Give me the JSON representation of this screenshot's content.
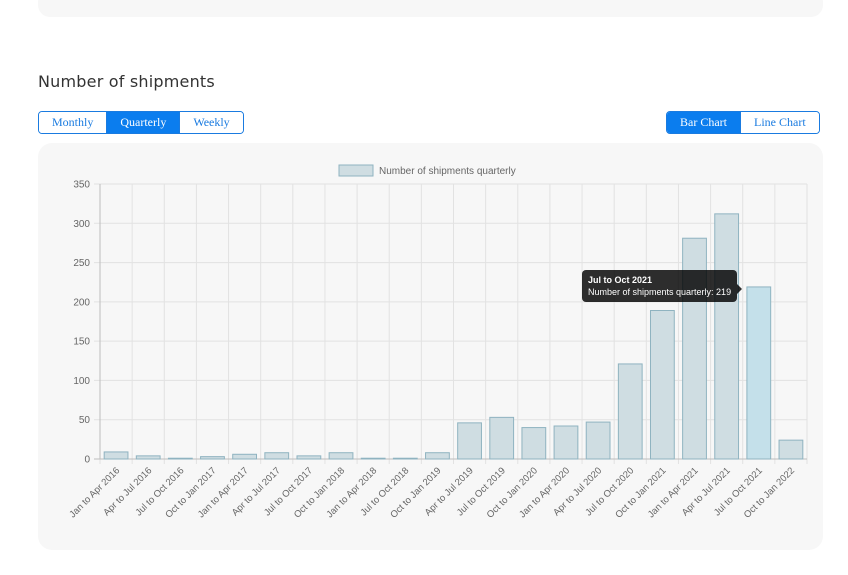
{
  "section": {
    "title": "Number of shipments"
  },
  "period_buttons": [
    {
      "label": "Monthly",
      "active": false
    },
    {
      "label": "Quarterly",
      "active": true
    },
    {
      "label": "Weekly",
      "active": false
    }
  ],
  "chart_type_buttons": [
    {
      "label": "Bar Chart",
      "active": true
    },
    {
      "label": "Line Chart",
      "active": false
    }
  ],
  "tooltip": {
    "title": "Jul to Oct 2021",
    "body": "Number of shipments quarterly: 219"
  },
  "colors": {
    "bar_fill": "#cfdde2",
    "bar_stroke": "#8fb3c0",
    "bar_highlight_fill": "#c4e0ea",
    "accent": "#0b7dee"
  },
  "chart_data": {
    "type": "bar",
    "legend": "Number of shipments quarterly",
    "legend_position": "top",
    "categories": [
      "Jan to Apr 2016",
      "Apr to Jul 2016",
      "Jul to Oct 2016",
      "Oct to Jan 2017",
      "Jan to Apr 2017",
      "Apr to Jul 2017",
      "Jul to Oct 2017",
      "Oct to Jan 2018",
      "Jan to Apr 2018",
      "Jul to Oct 2018",
      "Oct to Jan 2019",
      "Apr to Jul 2019",
      "Jul to Oct 2019",
      "Oct to Jan 2020",
      "Jan to Apr 2020",
      "Apr to Jul 2020",
      "Jul to Oct 2020",
      "Oct to Jan 2021",
      "Jan to Apr 2021",
      "Apr to Jul 2021",
      "Jul to Oct 2021",
      "Oct to Jan 2022"
    ],
    "values": [
      9,
      4,
      1,
      3,
      6,
      8,
      4,
      8,
      1,
      1,
      8,
      46,
      53,
      40,
      42,
      47,
      121,
      189,
      281,
      312,
      219,
      24
    ],
    "highlight_index": 20,
    "yticks": [
      0,
      50,
      100,
      150,
      200,
      250,
      300,
      350
    ],
    "ylim": [
      0,
      350
    ],
    "grid": true
  }
}
